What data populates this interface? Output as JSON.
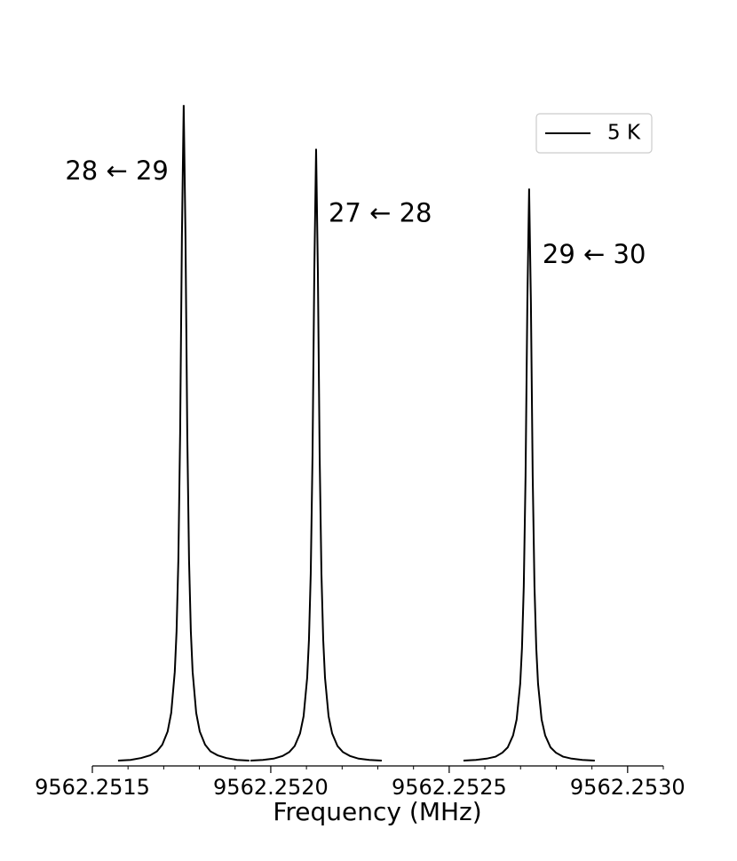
{
  "chart_data": {
    "type": "line",
    "xlabel": "Frequency (MHz)",
    "x": [
      9562.251572,
      9562.251607,
      9562.251637,
      9562.251662,
      9562.251681,
      9562.251696,
      9562.251711,
      9562.251721,
      9562.251731,
      9562.251736,
      9562.251741,
      9562.251746,
      9562.251751,
      9562.251756,
      9562.251761,
      9562.251766,
      9562.251771,
      9562.251776,
      9562.251781,
      9562.251791,
      9562.251801,
      9562.251816,
      9562.251831,
      9562.251851,
      9562.251875,
      9562.251905,
      9562.25194,
      null,
      9562.251943,
      9562.251978,
      9562.252008,
      9562.252033,
      9562.252052,
      9562.252067,
      9562.252082,
      9562.252092,
      9562.252102,
      9562.252107,
      9562.252112,
      9562.252117,
      9562.252122,
      9562.252127,
      9562.252132,
      9562.252137,
      9562.252142,
      9562.252147,
      9562.252152,
      9562.252162,
      9562.252172,
      9562.252187,
      9562.252202,
      9562.252222,
      9562.252246,
      9562.252276,
      9562.252311,
      null,
      9562.25254,
      9562.252575,
      9562.252605,
      9562.25263,
      9562.252649,
      9562.252664,
      9562.252679,
      9562.252689,
      9562.252699,
      9562.252704,
      9562.252709,
      9562.252714,
      9562.252719,
      9562.252724,
      9562.252729,
      9562.252734,
      9562.252739,
      9562.252744,
      9562.252749,
      9562.252759,
      9562.252769,
      9562.252784,
      9562.252799,
      9562.252819,
      9562.252843,
      9562.252873,
      9562.252908
    ],
    "series": [
      {
        "name": "5 K",
        "color": "#000000",
        "values": [
          0.008,
          0.009,
          0.012,
          0.016,
          0.022,
          0.032,
          0.052,
          0.08,
          0.142,
          0.203,
          0.31,
          0.501,
          0.799,
          0.997,
          0.799,
          0.501,
          0.31,
          0.203,
          0.142,
          0.08,
          0.052,
          0.032,
          0.022,
          0.016,
          0.012,
          0.009,
          0.008,
          null,
          0.008,
          0.009,
          0.011,
          0.015,
          0.021,
          0.03,
          0.049,
          0.075,
          0.133,
          0.19,
          0.29,
          0.468,
          0.746,
          0.931,
          0.746,
          0.468,
          0.29,
          0.19,
          0.133,
          0.075,
          0.049,
          0.03,
          0.021,
          0.015,
          0.011,
          0.009,
          0.008,
          null,
          0.008,
          0.009,
          0.011,
          0.014,
          0.02,
          0.028,
          0.046,
          0.07,
          0.124,
          0.178,
          0.271,
          0.438,
          0.698,
          0.871,
          0.698,
          0.438,
          0.271,
          0.178,
          0.124,
          0.07,
          0.046,
          0.028,
          0.02,
          0.014,
          0.011,
          0.009,
          0.008
        ]
      }
    ],
    "annotations": [
      {
        "text": "28 ← 29"
      },
      {
        "text": "27 ← 28"
      },
      {
        "text": "29 ← 30"
      }
    ],
    "xlim": [
      9562.2515,
      9562.2531
    ],
    "xticks": [
      9562.2515,
      {
        "value": 9562.252,
        "label": "9562.2520"
      },
      9562.2525,
      {
        "value": 9562.253,
        "label": "9562.2530"
      }
    ],
    "xminorticks": [
      9562.2516,
      9562.2517,
      9562.2518,
      9562.2519,
      9562.2521,
      9562.2522,
      9562.2523,
      9562.2524,
      9562.2526,
      9562.2527,
      9562.2528,
      9562.2529,
      9562.2531
    ],
    "ylim": [
      0,
      1
    ],
    "legend": "upper right"
  }
}
